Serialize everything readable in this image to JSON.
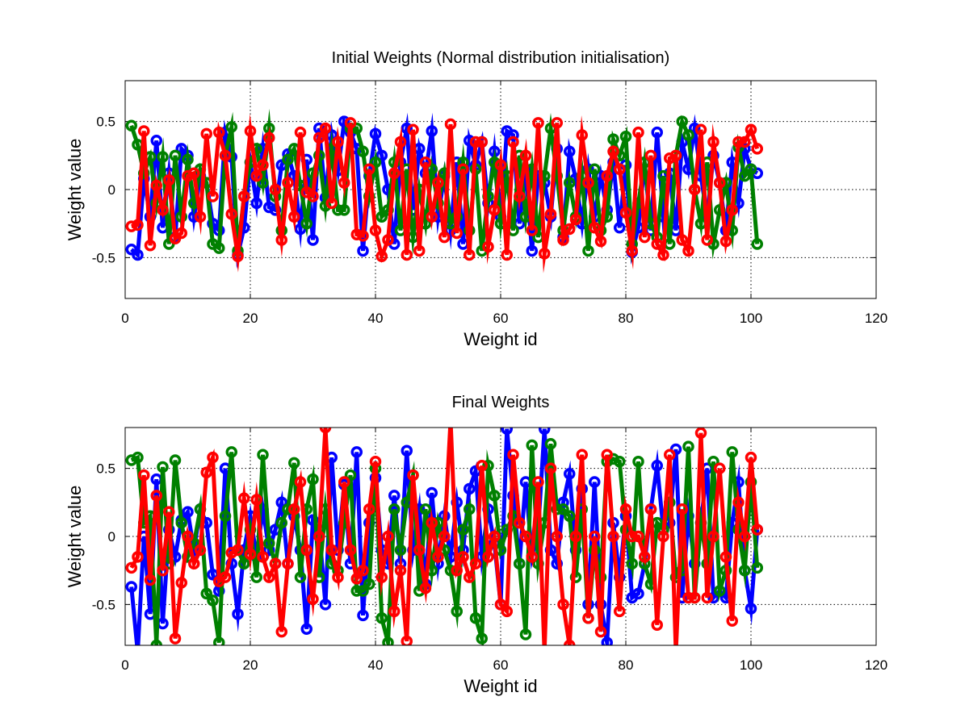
{
  "chart_data": [
    {
      "type": "line",
      "title": "Initial Weights (Normal distribution initialisation)",
      "xlabel": "Weight id",
      "ylabel": "Weight value",
      "xlim": [
        0,
        120
      ],
      "ylim": [
        -0.8,
        0.8
      ],
      "xticks": [
        0,
        20,
        40,
        60,
        80,
        100,
        120
      ],
      "yticks": [
        -0.5,
        0,
        0.5
      ],
      "ytick_labels": [
        "-0.5",
        "0",
        "0.5"
      ],
      "grid": true,
      "marker": "circle",
      "x": [
        1,
        2,
        3,
        4,
        5,
        6,
        7,
        8,
        9,
        10,
        11,
        12,
        13,
        14,
        15,
        16,
        17,
        18,
        19,
        20,
        21,
        22,
        23,
        24,
        25,
        26,
        27,
        28,
        29,
        30,
        31,
        32,
        33,
        34,
        35,
        36,
        37,
        38,
        39,
        40,
        41,
        42,
        43,
        44,
        45,
        46,
        47,
        48,
        49,
        50,
        51,
        52,
        53,
        54,
        55,
        56,
        57,
        58,
        59,
        60,
        61,
        62,
        63,
        64,
        65,
        66,
        67,
        68,
        69,
        70,
        71,
        72,
        73,
        74,
        75,
        76,
        77,
        78,
        79,
        80,
        81,
        82,
        83,
        84,
        85,
        86,
        87,
        88,
        89,
        90,
        91,
        92,
        93,
        94,
        95,
        96,
        97,
        98,
        99,
        100,
        101
      ],
      "series": [
        {
          "color": "#0000ff",
          "values": [
            -0.44,
            -0.48,
            0.08,
            -0.2,
            0.36,
            -0.28,
            0.12,
            -0.35,
            0.3,
            0.25,
            -0.2,
            0.1,
            0.05,
            -0.25,
            -0.3,
            0.42,
            0.24,
            -0.48,
            -0.28,
            0.2,
            -0.1,
            0.3,
            -0.13,
            -0.15,
            0.18,
            0.26,
            0.1,
            -0.29,
            0.22,
            -0.37,
            0.45,
            -0.06,
            0.4,
            0.14,
            0.5,
            0.42,
            0.3,
            -0.45,
            0.1,
            0.41,
            0.25,
            0.0,
            -0.4,
            0.2,
            0.45,
            -0.15,
            0.3,
            0.12,
            0.43,
            -0.2,
            0.1,
            -0.3,
            0.2,
            -0.4,
            0.36,
            0.18,
            0.35,
            -0.1,
            0.28,
            -0.2,
            0.43,
            0.4,
            -0.25,
            0.15,
            -0.45,
            0.1,
            0.05,
            -0.2,
            0.3,
            -0.35,
            0.28,
            0.08,
            -0.25,
            0.15,
            -0.2,
            0.1,
            -0.15,
            0.2,
            -0.28,
            0.18,
            -0.46,
            -0.28,
            0.2,
            -0.3,
            0.42,
            -0.2,
            0.12,
            -0.3,
            0.35,
            0.15,
            0.45,
            0.1,
            -0.2,
            0.25,
            0.05,
            -0.3,
            0.2,
            -0.1,
            0.3,
            0.15,
            0.12
          ]
        },
        {
          "color": "#008000",
          "values": [
            0.47,
            0.33,
            0.12,
            0.24,
            -0.1,
            0.24,
            -0.4,
            0.25,
            -0.2,
            0.22,
            -0.1,
            0.15,
            0.05,
            -0.4,
            -0.43,
            0.25,
            0.46,
            -0.45,
            -0.05,
            0.2,
            0.3,
            0.05,
            0.45,
            -0.05,
            -0.3,
            0.22,
            0.3,
            0.03,
            -0.25,
            0.12,
            0.25,
            -0.12,
            0.3,
            -0.15,
            -0.15,
            0.45,
            0.45,
            0.28,
            -0.05,
            0.2,
            -0.2,
            -0.15,
            0.2,
            -0.3,
            0.15,
            -0.35,
            0.0,
            -0.25,
            0.15,
            -0.1,
            0.12,
            -0.25,
            -0.2,
            0.2,
            -0.3,
            0.15,
            -0.45,
            -0.05,
            0.2,
            -0.25,
            0.1,
            -0.3,
            0.25,
            -0.2,
            0.15,
            -0.35,
            0.1,
            0.45,
            0.1,
            -0.3,
            0.05,
            -0.2,
            0.1,
            -0.45,
            0.15,
            -0.3,
            -0.2,
            0.37,
            0.25,
            0.39,
            -0.4,
            -0.1,
            0.2,
            -0.25,
            -0.35,
            0.1,
            -0.4,
            0.25,
            0.5,
            0.4,
            0.0,
            -0.25,
            0.2,
            -0.4,
            -0.15,
            0.05,
            -0.3,
            0.31,
            0.1,
            0.15,
            -0.4
          ]
        },
        {
          "color": "#ff0000",
          "values": [
            -0.27,
            -0.26,
            0.43,
            -0.41,
            0.03,
            -0.15,
            0.07,
            -0.36,
            -0.32,
            0.1,
            0.12,
            -0.2,
            0.41,
            -0.05,
            0.42,
            0.25,
            -0.18,
            -0.49,
            -0.05,
            0.43,
            0.1,
            0.18,
            0.38,
            0.0,
            -0.37,
            0.05,
            -0.2,
            0.42,
            -0.02,
            -0.05,
            0.38,
            0.45,
            -0.1,
            0.35,
            0.05,
            0.49,
            -0.33,
            -0.34,
            0.15,
            -0.3,
            -0.49,
            -0.37,
            0.12,
            0.35,
            -0.48,
            0.44,
            -0.45,
            0.2,
            -0.2,
            0.05,
            -0.35,
            0.48,
            -0.32,
            0.15,
            -0.48,
            0.35,
            0.35,
            -0.42,
            -0.15,
            0.18,
            -0.48,
            0.35,
            -0.05,
            0.25,
            -0.3,
            0.49,
            -0.47,
            -0.18,
            0.49,
            -0.37,
            -0.29,
            -0.22,
            0.4,
            0.05,
            -0.28,
            -0.38,
            0.1,
            0.28,
            0.15,
            -0.17,
            -0.45,
            0.42,
            -0.35,
            0.25,
            -0.4,
            -0.48,
            0.23,
            0.25,
            -0.37,
            -0.45,
            0.0,
            0.44,
            -0.37,
            0.35,
            0.05,
            -0.38,
            -0.15,
            0.35,
            0.35,
            0.44,
            0.3
          ]
        }
      ]
    },
    {
      "type": "line",
      "title": "Final Weights",
      "xlabel": "Weight id",
      "ylabel": "Weight value",
      "xlim": [
        0,
        120
      ],
      "ylim": [
        -0.8,
        0.8
      ],
      "xticks": [
        0,
        20,
        40,
        60,
        80,
        100,
        120
      ],
      "yticks": [
        -0.5,
        0,
        0.5
      ],
      "ytick_labels": [
        "-0.5",
        "0",
        "0.5"
      ],
      "grid": true,
      "marker": "circle",
      "x": [
        1,
        2,
        3,
        4,
        5,
        6,
        7,
        8,
        9,
        10,
        11,
        12,
        13,
        14,
        15,
        16,
        17,
        18,
        19,
        20,
        21,
        22,
        23,
        24,
        25,
        26,
        27,
        28,
        29,
        30,
        31,
        32,
        33,
        34,
        35,
        36,
        37,
        38,
        39,
        40,
        41,
        42,
        43,
        44,
        45,
        46,
        47,
        48,
        49,
        50,
        51,
        52,
        53,
        54,
        55,
        56,
        57,
        58,
        59,
        60,
        61,
        62,
        63,
        64,
        65,
        66,
        67,
        68,
        69,
        70,
        71,
        72,
        73,
        74,
        75,
        76,
        77,
        78,
        79,
        80,
        81,
        82,
        83,
        84,
        85,
        86,
        87,
        88,
        89,
        90,
        91,
        92,
        93,
        94,
        95,
        96,
        97,
        98,
        99,
        100,
        101
      ],
      "series": [
        {
          "color": "#0000ff",
          "values": [
            -0.37,
            -0.85,
            0.0,
            -0.57,
            0.42,
            -0.64,
            0.05,
            -0.15,
            0.12,
            0.18,
            -0.1,
            0.2,
            0.1,
            -0.28,
            -0.4,
            0.5,
            -0.2,
            -0.57,
            -0.1,
            0.15,
            -0.15,
            0.2,
            -0.1,
            0.05,
            0.25,
            -0.2,
            0.15,
            -0.1,
            -0.68,
            0.12,
            0.05,
            -0.5,
            0.58,
            -0.1,
            0.38,
            -0.2,
            0.62,
            -0.58,
            0.1,
            0.43,
            -0.1,
            -0.2,
            0.3,
            -0.2,
            0.63,
            -0.1,
            0.2,
            -0.35,
            0.32,
            -0.2,
            0.15,
            -0.15,
            0.25,
            -0.1,
            0.35,
            0.48,
            -0.15,
            0.2,
            -0.05,
            -0.5,
            0.79,
            0.3,
            -0.2,
            0.4,
            -0.15,
            0.05,
            0.79,
            -0.1,
            -0.2,
            0.25,
            0.46,
            -0.1,
            0.35,
            -0.5,
            0.4,
            -0.5,
            -0.78,
            0.1,
            -0.3,
            0.15,
            -0.45,
            -0.42,
            -0.2,
            0.2,
            0.52,
            0.05,
            0.1,
            0.64,
            -0.45,
            0.15,
            -0.2,
            0.1,
            0.5,
            -0.45,
            -0.4,
            -0.45,
            0.1,
            0.4,
            -0.25,
            -0.53,
            0.05
          ]
        },
        {
          "color": "#008000",
          "values": [
            0.56,
            0.58,
            0.1,
            0.15,
            -0.8,
            0.51,
            -0.2,
            0.56,
            0.1,
            -0.15,
            -0.05,
            0.2,
            -0.42,
            -0.47,
            -0.78,
            0.15,
            0.62,
            -0.1,
            -0.2,
            0.05,
            -0.3,
            0.6,
            -0.05,
            -0.2,
            0.1,
            0.2,
            0.54,
            -0.3,
            0.2,
            0.42,
            -0.3,
            0.2,
            -0.2,
            -0.25,
            0.1,
            0.45,
            -0.4,
            -0.4,
            -0.35,
            0.5,
            -0.6,
            -0.78,
            0.2,
            -0.1,
            0.25,
            0.45,
            -0.4,
            0.2,
            -0.25,
            0.1,
            -0.1,
            -0.25,
            -0.55,
            0.05,
            0.2,
            -0.6,
            -0.75,
            0.52,
            0.3,
            -0.1,
            0.05,
            0.15,
            -0.2,
            -0.72,
            0.67,
            -0.2,
            0.1,
            0.68,
            0.2,
            0.2,
            0.15,
            -0.3,
            0.2,
            -0.6,
            -0.1,
            -0.3,
            0.55,
            0.57,
            0.55,
            0.05,
            -0.2,
            0.55,
            -0.2,
            -0.35,
            0.1,
            0.05,
            0.25,
            -0.3,
            -0.25,
            0.66,
            -0.45,
            0.1,
            -0.2,
            0.55,
            -0.4,
            -0.25,
            0.62,
            0.05,
            -0.25,
            0.4,
            -0.23
          ]
        },
        {
          "color": "#ff0000",
          "values": [
            -0.23,
            -0.15,
            0.45,
            -0.32,
            0.3,
            -0.25,
            0.18,
            -0.75,
            -0.34,
            0.0,
            -0.2,
            -0.1,
            0.47,
            0.58,
            -0.33,
            -0.3,
            -0.12,
            -0.1,
            0.28,
            -0.13,
            0.27,
            -0.15,
            -0.3,
            -0.2,
            -0.7,
            -0.2,
            0.2,
            0.4,
            -0.1,
            -0.46,
            0.0,
            0.8,
            -0.1,
            -0.3,
            0.4,
            -0.1,
            -0.31,
            -0.25,
            0.2,
            0.55,
            -0.3,
            0.0,
            -0.55,
            -0.25,
            -0.77,
            0.45,
            -0.1,
            -0.38,
            0.1,
            -0.15,
            0.0,
            0.85,
            -0.25,
            -0.15,
            -0.3,
            -0.2,
            0.52,
            -0.15,
            0.0,
            -0.5,
            -0.55,
            0.6,
            0.1,
            0.0,
            -0.15,
            0.4,
            -0.85,
            0.5,
            0.0,
            -0.5,
            -0.8,
            0.0,
            0.6,
            -0.6,
            0.0,
            -0.7,
            0.6,
            0.0,
            -0.55,
            0.2,
            0.0,
            0.0,
            -0.15,
            0.2,
            -0.65,
            0.0,
            0.6,
            -0.85,
            0.2,
            -0.45,
            -0.45,
            0.76,
            -0.45,
            0.0,
            0.5,
            -0.15,
            -0.62,
            0.25,
            0.0,
            0.58,
            0.05
          ]
        }
      ]
    }
  ]
}
